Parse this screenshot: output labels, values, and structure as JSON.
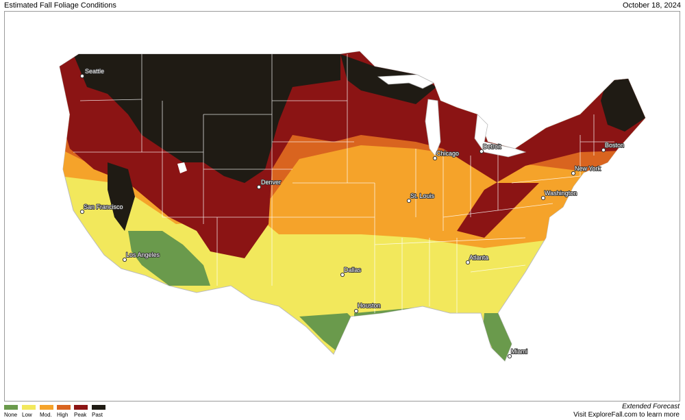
{
  "header": {
    "title": "Estimated Fall Foliage Conditions",
    "date": "October 18, 2024"
  },
  "legend": {
    "items": [
      {
        "label": "None",
        "color": "#6a9a4c"
      },
      {
        "label": "Low",
        "color": "#f2e85c"
      },
      {
        "label": "Mod.",
        "color": "#f5a32a"
      },
      {
        "label": "High",
        "color": "#d9641f"
      },
      {
        "label": "Peak",
        "color": "#8b1414"
      },
      {
        "label": "Past",
        "color": "#1f1b14"
      }
    ]
  },
  "cities": [
    {
      "name": "Seattle"
    },
    {
      "name": "San Francisco"
    },
    {
      "name": "Los Angeles"
    },
    {
      "name": "Denver"
    },
    {
      "name": "Dallas"
    },
    {
      "name": "Houston"
    },
    {
      "name": "Chicago"
    },
    {
      "name": "Detroit"
    },
    {
      "name": "St. Louis"
    },
    {
      "name": "Atlanta"
    },
    {
      "name": "Miami"
    },
    {
      "name": "Washington"
    },
    {
      "name": "New York"
    },
    {
      "name": "Boston"
    }
  ],
  "footer": {
    "forecast": "Extended Forecast",
    "learn_more": "Visit ExploreFall.com to learn more"
  }
}
